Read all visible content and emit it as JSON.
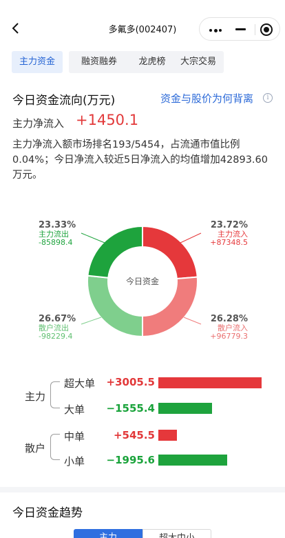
{
  "header": {
    "title": "多氟多(002407)"
  },
  "tabs": [
    "主力资金",
    "融资融券",
    "龙虎榜",
    "大宗交易"
  ],
  "flow": {
    "title": "今日资金流向(万元)",
    "link": "资金与股价为何背离",
    "info_icon": "i",
    "net_label": "主力净流入",
    "net_value": "+1450.1",
    "description": "主力净流入额市场排名193/5454，占流通市值比例0.04%；今日净流入较近5日净流入的均值增加42893.60万元。"
  },
  "donut": {
    "center": "今日资金",
    "segments": [
      {
        "pct": "23.72%",
        "name": "主力流入",
        "value": "+87348.5",
        "share": 23.72,
        "color": "#e5383b",
        "text_color": "#e5383b"
      },
      {
        "pct": "26.28%",
        "name": "散户流入",
        "value": "+96779.3",
        "share": 26.28,
        "color": "#f07c7c",
        "text_color": "#ea6f6f"
      },
      {
        "pct": "26.67%",
        "name": "散户流出",
        "value": "-98229.4",
        "share": 26.67,
        "color": "#7fcf8d",
        "text_color": "#5fbf70"
      },
      {
        "pct": "23.33%",
        "name": "主力流出",
        "value": "-85898.4",
        "share": 23.33,
        "color": "#1ea33d",
        "text_color": "#1ea33d"
      }
    ]
  },
  "groups": {
    "main": "主力",
    "retail": "散户"
  },
  "rows": [
    {
      "name": "超大单",
      "value": "+3005.5",
      "amount": 3005.5
    },
    {
      "name": "大单",
      "value": "−1555.4",
      "amount": -1555.4
    },
    {
      "name": "中单",
      "value": "+545.5",
      "amount": 545.5
    },
    {
      "name": "小单",
      "value": "−1995.6",
      "amount": -1995.6
    }
  ],
  "trend": {
    "title": "今日资金趋势",
    "seg_a": "主力",
    "seg_b": "超大中小"
  }
}
